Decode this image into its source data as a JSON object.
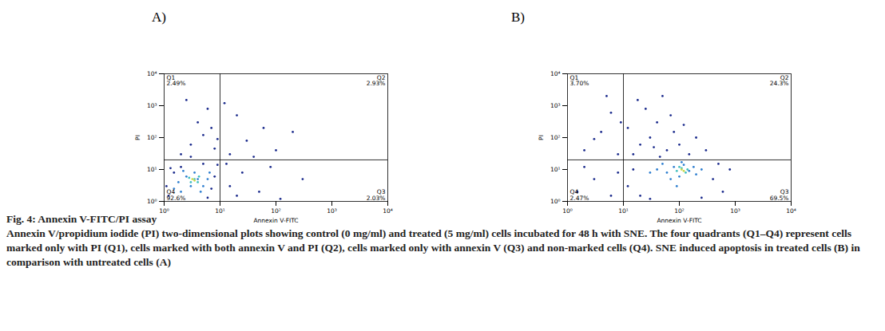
{
  "figure_title": "Fig. 4: Annexin V-FITC/PI assay",
  "caption": "Annexin V/propidium iodide (PI) two-dimensional plots showing control (0 mg/ml) and treated (5 mg/ml) cells incubated for 48 h with SNE. The four quadrants (Q1–Q4) represent cells marked only with PI (Q1), cells marked with both annexin V and PI (Q2), cells marked only with annexin V (Q3) and non-marked cells (Q4). SNE induced apoptosis in treated cells (B) in comparison with untreated cells (A)",
  "chart_data": [
    {
      "type": "scatter",
      "title": "A)",
      "x_label": "Annexin V-FITC",
      "y_label": "PI",
      "log": true,
      "grid": false,
      "xlim": [
        1,
        10000
      ],
      "ylim": [
        1,
        10000
      ],
      "xticks": [
        {
          "value": 1,
          "label": "10⁰"
        },
        {
          "value": 10,
          "label": "10¹"
        },
        {
          "value": 100,
          "label": "10²"
        },
        {
          "value": 1000,
          "label": "10³"
        },
        {
          "value": 10000,
          "label": "10⁴"
        }
      ],
      "yticks": [
        {
          "value": 1,
          "label": "10⁰"
        },
        {
          "value": 10,
          "label": "10¹"
        },
        {
          "value": 100,
          "label": "10²"
        },
        {
          "value": 1000,
          "label": "10³"
        },
        {
          "value": 10000,
          "label": "10⁴"
        }
      ],
      "gates": {
        "x": 10,
        "y": 20
      },
      "quadrants": [
        {
          "name": "Q1",
          "value": 2.49,
          "label": "2.49%"
        },
        {
          "name": "Q2",
          "value": 2.93,
          "label": "2.93%"
        },
        {
          "name": "Q3",
          "value": 2.03,
          "label": "2.03%"
        },
        {
          "name": "Q4",
          "value": 92.6,
          "label": "92.6%"
        }
      ],
      "series": [
        {
          "color": "#1a2a8c",
          "x": [
            1.2,
            1.5,
            2,
            6,
            8,
            9,
            1.1,
            7,
            5,
            1.3,
            2,
            3,
            5,
            4,
            6,
            2.5,
            8,
            7,
            3,
            9,
            15,
            30,
            60,
            20,
            100,
            12,
            40,
            200,
            15,
            25,
            50,
            80,
            300,
            20,
            120,
            13
          ],
          "y": [
            1.5,
            8,
            12,
            1.3,
            6,
            14,
            3,
            2.5,
            15,
            11,
            30,
            60,
            120,
            300,
            800,
            1500,
            45,
            200,
            25,
            90,
            30,
            80,
            200,
            500,
            40,
            1200,
            25,
            150,
            3,
            8,
            2,
            12,
            5,
            1.5,
            1.2,
            15
          ]
        },
        {
          "color": "#2f7fd0",
          "x": [
            2,
            3,
            4,
            2.5,
            5,
            3.5,
            1.8,
            6,
            4.5,
            2.2,
            6.5,
            1.5
          ],
          "y": [
            2,
            3,
            5,
            6,
            3,
            8,
            4,
            5,
            2,
            9,
            8,
            2.5
          ]
        },
        {
          "color": "#3fbfbf",
          "x": [
            3,
            3.5,
            4,
            2.8,
            4.2
          ],
          "y": [
            4,
            5,
            4,
            5.5,
            6
          ]
        },
        {
          "color": "#c8d94a",
          "x": [
            3.5,
            3.2
          ],
          "y": [
            4.5,
            5
          ]
        }
      ]
    },
    {
      "type": "scatter",
      "title": "B)",
      "x_label": "Annexin V-FITC",
      "y_label": "PI",
      "log": true,
      "grid": false,
      "xlim": [
        1,
        10000
      ],
      "ylim": [
        1,
        10000
      ],
      "xticks": [
        {
          "value": 1,
          "label": "10⁰"
        },
        {
          "value": 10,
          "label": "10¹"
        },
        {
          "value": 100,
          "label": "10²"
        },
        {
          "value": 1000,
          "label": "10³"
        },
        {
          "value": 10000,
          "label": "10⁴"
        }
      ],
      "yticks": [
        {
          "value": 1,
          "label": "10⁰"
        },
        {
          "value": 10,
          "label": "10¹"
        },
        {
          "value": 100,
          "label": "10²"
        },
        {
          "value": 1000,
          "label": "10³"
        },
        {
          "value": 10000,
          "label": "10⁴"
        }
      ],
      "gates": {
        "x": 10,
        "y": 20
      },
      "quadrants": [
        {
          "name": "Q1",
          "value": 3.7,
          "label": "3.70%"
        },
        {
          "name": "Q2",
          "value": 24.3,
          "label": "24.3%"
        },
        {
          "name": "Q3",
          "value": 69.5,
          "label": "69.5%"
        },
        {
          "name": "Q4",
          "value": 2.47,
          "label": "2.47%"
        }
      ],
      "series": [
        {
          "color": "#1a2a8c",
          "x": [
            1.5,
            3,
            6,
            8,
            2,
            2,
            4,
            6,
            8,
            5,
            3,
            9,
            15,
            20,
            30,
            40,
            60,
            80,
            25,
            50,
            100,
            150,
            200,
            12,
            35,
            70,
            18,
            120,
            300,
            45,
            12,
            15,
            20,
            400,
            600,
            800,
            30,
            500,
            250
          ],
          "y": [
            2,
            5,
            1.5,
            8,
            12,
            40,
            150,
            600,
            30,
            2000,
            90,
            300,
            30,
            60,
            100,
            300,
            40,
            150,
            800,
            2000,
            60,
            30,
            100,
            200,
            50,
            500,
            1500,
            250,
            40,
            25,
            3,
            10,
            1.5,
            5,
            2,
            10,
            1.2,
            15,
            1.3
          ]
        },
        {
          "color": "#2f7fd0",
          "x": [
            40,
            60,
            80,
            100,
            150,
            200,
            50,
            70,
            120,
            180,
            90,
            30,
            250,
            110
          ],
          "y": [
            10,
            8,
            12,
            6,
            9,
            7,
            15,
            5,
            14,
            12,
            3,
            8,
            10,
            17
          ]
        },
        {
          "color": "#3fbfbf",
          "x": [
            90,
            110,
            130,
            100,
            140
          ],
          "y": [
            9,
            11,
            8,
            12,
            10
          ]
        },
        {
          "color": "#c8d94a",
          "x": [
            110,
            120
          ],
          "y": [
            10,
            9
          ]
        }
      ]
    }
  ]
}
